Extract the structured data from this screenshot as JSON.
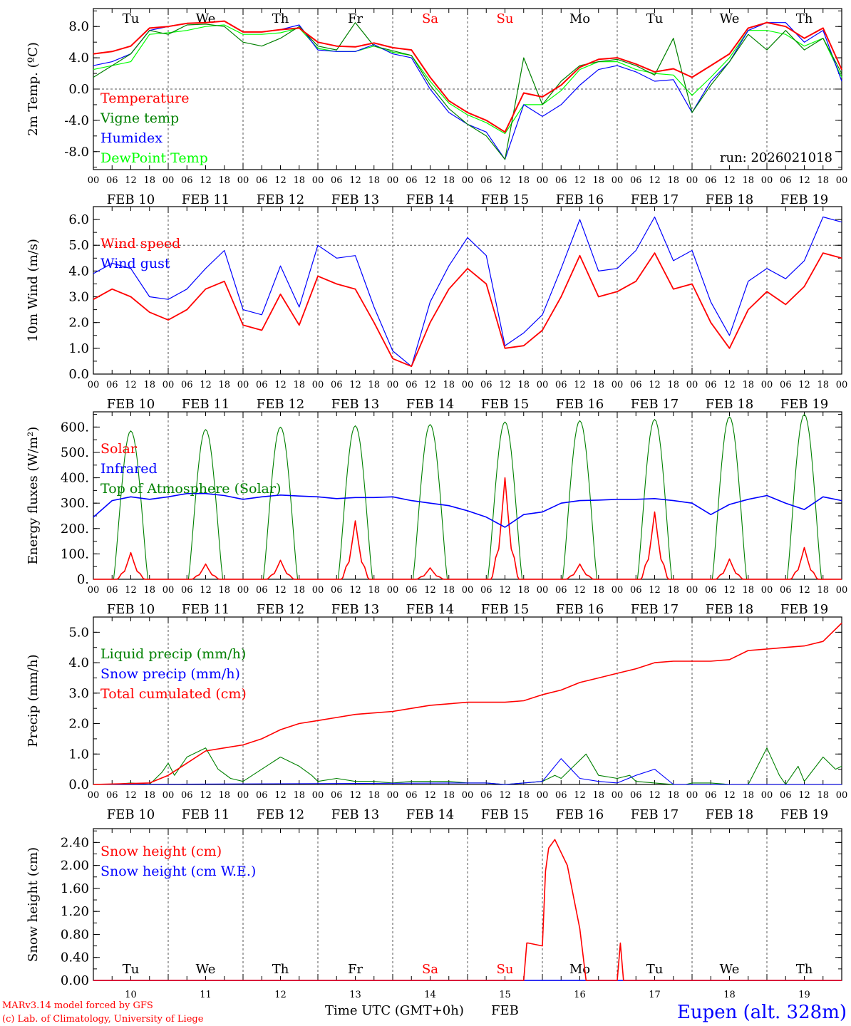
{
  "run_label": "run: 2026021018",
  "credits": [
    "MARv3.14 model forced by GFS",
    "(c) Lab. of Climatology, University of Liege"
  ],
  "x_title": "Time UTC (GMT+0h)",
  "month_label": "FEB",
  "location": "Eupen (alt. 328m)",
  "hour_ticks": [
    "00",
    "06",
    "12",
    "18"
  ],
  "date_labels": [
    "FEB 10",
    "FEB 11",
    "FEB 12",
    "FEB 13",
    "FEB 14",
    "FEB 15",
    "FEB 16",
    "FEB 17",
    "FEB 18",
    "FEB 19"
  ],
  "day_numbers": [
    "10",
    "11",
    "12",
    "13",
    "14",
    "15",
    "16",
    "17",
    "18",
    "19"
  ],
  "weekdays": [
    "Tu",
    "We",
    "Th",
    "Fr",
    "Sa",
    "Su",
    "Mo",
    "Tu",
    "We",
    "Th"
  ],
  "weekend_flags": [
    false,
    false,
    false,
    false,
    true,
    true,
    false,
    false,
    false,
    false
  ],
  "colors": {
    "red": "#ff0000",
    "green": "#008000",
    "blue": "#0000ff",
    "lime": "#00ff00",
    "weekend": "#ff0000",
    "location": "#0000ff"
  },
  "chart_data": [
    {
      "type": "line",
      "id": "temp",
      "ylabel": "2m Temp. (ºC)",
      "ylim": [
        -10.3,
        10.3
      ],
      "yticks": [
        "8.0",
        "4.0",
        "0.0",
        "-4.0",
        "-8.0"
      ],
      "ytick_values": [
        8,
        4,
        0,
        -4,
        -8
      ],
      "ref_line": 0,
      "show_weekdays": "top",
      "x_hours": [
        0,
        6,
        12,
        18,
        24,
        30,
        36,
        42,
        48,
        54,
        60,
        66,
        72,
        78,
        84,
        90,
        96,
        102,
        108,
        114,
        120,
        126,
        132,
        138,
        144,
        150,
        156,
        162,
        168,
        174,
        180,
        186,
        192,
        198,
        204,
        210,
        216,
        222,
        228,
        234,
        240
      ],
      "series": [
        {
          "name": "Temperature",
          "color": "red",
          "values": [
            4.5,
            4.8,
            5.5,
            7.8,
            8.0,
            8.4,
            8.5,
            8.7,
            7.3,
            7.3,
            7.6,
            7.8,
            6.0,
            5.5,
            5.4,
            5.9,
            5.3,
            5.0,
            1.5,
            -1.5,
            -3.0,
            -4.0,
            -5.5,
            -0.5,
            -1.0,
            0.5,
            2.8,
            3.8,
            4.0,
            3.2,
            2.2,
            2.6,
            1.5,
            3.0,
            4.5,
            7.8,
            8.5,
            8.0,
            6.5,
            7.8,
            2.5
          ]
        },
        {
          "name": "Vigne temp",
          "color": "green",
          "values": [
            1.5,
            3.0,
            4.5,
            7.5,
            7.0,
            8.2,
            8.3,
            8.0,
            6.0,
            5.5,
            6.5,
            8.0,
            5.5,
            5.0,
            8.5,
            5.5,
            4.9,
            4.3,
            0.5,
            -2.5,
            -4.5,
            -6.0,
            -9.0,
            4.0,
            -2.0,
            1.0,
            3.0,
            3.5,
            3.8,
            3.0,
            1.8,
            6.5,
            -3.0,
            0.5,
            3.5,
            7.0,
            5.0,
            7.5,
            5.0,
            6.5,
            2.0
          ]
        },
        {
          "name": "Humidex",
          "color": "blue",
          "values": [
            3.0,
            3.5,
            4.5,
            7.5,
            8.0,
            8.4,
            8.5,
            8.7,
            7.3,
            7.3,
            7.6,
            8.2,
            5.0,
            4.8,
            4.8,
            5.7,
            4.5,
            4.0,
            0.0,
            -3.0,
            -4.5,
            -5.5,
            -9.0,
            -2.0,
            -3.5,
            -2.0,
            0.5,
            2.5,
            3.0,
            2.2,
            1.0,
            1.2,
            -3.0,
            1.0,
            3.5,
            7.5,
            8.5,
            8.5,
            6.0,
            7.5,
            1.0
          ]
        },
        {
          "name": "DewPoint Temp",
          "color": "lime",
          "values": [
            2.5,
            3.0,
            3.5,
            7.0,
            7.2,
            7.5,
            8.0,
            8.2,
            7.0,
            7.0,
            7.2,
            7.8,
            5.2,
            4.8,
            4.8,
            5.5,
            4.7,
            4.3,
            1.0,
            -1.8,
            -3.3,
            -4.3,
            -5.7,
            -2.0,
            -2.0,
            -0.2,
            2.5,
            3.5,
            3.5,
            2.5,
            2.0,
            1.8,
            -0.8,
            1.5,
            4.0,
            7.5,
            7.5,
            7.0,
            5.5,
            6.5,
            1.5
          ]
        }
      ]
    },
    {
      "type": "line",
      "id": "wind",
      "ylabel": "10m Wind (m/s)",
      "ylim": [
        0,
        6.5
      ],
      "yticks": [
        "6.0",
        "5.0",
        "4.0",
        "3.0",
        "2.0",
        "1.0",
        "0.0"
      ],
      "ytick_values": [
        6,
        5,
        4,
        3,
        2,
        1,
        0
      ],
      "ref_line": 5.0,
      "x_hours": [
        0,
        6,
        12,
        18,
        24,
        30,
        36,
        42,
        48,
        54,
        60,
        66,
        72,
        78,
        84,
        90,
        96,
        102,
        108,
        114,
        120,
        126,
        132,
        138,
        144,
        150,
        156,
        162,
        168,
        174,
        180,
        186,
        192,
        198,
        204,
        210,
        216,
        222,
        228,
        234,
        240
      ],
      "series": [
        {
          "name": "Wind speed",
          "color": "red",
          "values": [
            2.9,
            3.3,
            3.0,
            2.4,
            2.1,
            2.5,
            3.3,
            3.6,
            1.9,
            1.7,
            3.1,
            1.9,
            3.8,
            3.5,
            3.3,
            2.0,
            0.6,
            0.3,
            2.0,
            3.3,
            4.1,
            3.5,
            1.0,
            1.1,
            1.7,
            3.0,
            4.6,
            3.0,
            3.2,
            3.6,
            4.7,
            3.3,
            3.5,
            2.0,
            1.0,
            2.5,
            3.2,
            2.7,
            3.4,
            4.7,
            4.5
          ]
        },
        {
          "name": "Wind gust",
          "color": "blue",
          "values": [
            3.9,
            4.3,
            4.1,
            3.0,
            2.9,
            3.3,
            4.1,
            4.8,
            2.5,
            2.3,
            4.2,
            2.6,
            5.0,
            4.5,
            4.6,
            2.6,
            0.9,
            0.3,
            2.8,
            4.2,
            5.3,
            4.6,
            1.1,
            1.6,
            2.3,
            4.1,
            6.0,
            4.0,
            4.1,
            4.8,
            6.1,
            4.4,
            4.8,
            2.8,
            1.5,
            3.6,
            4.1,
            3.7,
            4.4,
            6.1,
            5.9
          ]
        }
      ]
    },
    {
      "type": "line",
      "id": "energy",
      "ylabel": "Energy fluxes (W/m²)",
      "ylim": [
        0,
        660
      ],
      "yticks": [
        "600.",
        "500.",
        "400.",
        "300.",
        "200.",
        "100.",
        "0."
      ],
      "ytick_values": [
        600,
        500,
        400,
        300,
        200,
        100,
        0
      ],
      "legend": [
        "Solar",
        "Infrared",
        "Top of Atmosphere (Solar)"
      ],
      "solar_peaks_day": [
        105,
        60,
        75,
        230,
        45,
        400,
        60,
        265,
        80,
        125
      ],
      "toa_peaks_day": [
        585,
        590,
        600,
        605,
        610,
        620,
        625,
        630,
        640,
        650
      ],
      "infrared": {
        "x_hours": [
          0,
          6,
          12,
          18,
          24,
          30,
          36,
          42,
          48,
          54,
          60,
          66,
          72,
          78,
          84,
          90,
          96,
          102,
          108,
          114,
          120,
          126,
          132,
          138,
          144,
          150,
          156,
          162,
          168,
          174,
          180,
          186,
          192,
          198,
          204,
          210,
          216,
          222,
          228,
          234,
          240
        ],
        "values": [
          245,
          310,
          325,
          315,
          325,
          338,
          338,
          330,
          315,
          325,
          332,
          328,
          325,
          318,
          322,
          322,
          325,
          310,
          300,
          290,
          270,
          245,
          205,
          255,
          265,
          300,
          310,
          312,
          315,
          315,
          318,
          310,
          300,
          255,
          295,
          315,
          330,
          300,
          275,
          325,
          310
        ]
      }
    },
    {
      "type": "line",
      "id": "precip",
      "ylabel": "Precip (mm/h)",
      "ylim": [
        0,
        5.5
      ],
      "yticks": [
        "5.0",
        "4.0",
        "3.0",
        "2.0",
        "1.0",
        "0.0"
      ],
      "ytick_values": [
        5,
        4,
        3,
        2,
        1,
        0
      ],
      "series": [
        {
          "name": "Liquid precip (mm/h)",
          "color": "green",
          "values_x_hours": [
            0,
            6,
            12,
            18,
            22,
            24,
            26,
            30,
            36,
            40,
            44,
            48,
            54,
            60,
            66,
            70,
            72,
            78,
            84,
            90,
            96,
            102,
            108,
            114,
            120,
            126,
            132,
            138,
            144,
            148,
            150,
            154,
            158,
            162,
            168,
            172,
            174,
            180,
            186,
            190,
            192,
            198,
            204,
            210,
            216,
            220,
            222,
            226,
            228,
            234,
            238,
            240
          ],
          "values": [
            0,
            0,
            0.05,
            0,
            0.4,
            0.7,
            0.3,
            0.9,
            1.2,
            0.5,
            0.2,
            0.1,
            0.5,
            0.9,
            0.6,
            0.3,
            0.1,
            0.2,
            0.1,
            0.1,
            0.05,
            0.1,
            0.1,
            0.1,
            0.05,
            0.05,
            0,
            0.05,
            0.1,
            0.3,
            0.2,
            0.6,
            1.0,
            0.3,
            0.2,
            0.3,
            0.1,
            0.05,
            0,
            0,
            0.05,
            0.05,
            0,
            0,
            1.2,
            0.3,
            0,
            0.6,
            0.1,
            0.9,
            0.5,
            0.6
          ]
        },
        {
          "name": "Snow precip (mm/h)",
          "color": "blue",
          "values_x_hours": [
            0,
            120,
            126,
            132,
            138,
            144,
            150,
            156,
            162,
            168,
            174,
            180,
            186,
            240
          ],
          "values": [
            0,
            0.05,
            0.05,
            0,
            0.05,
            0.1,
            0.85,
            0.2,
            0.1,
            0.05,
            0.3,
            0.5,
            0,
            0
          ]
        },
        {
          "name": "Total cumulated (cm)",
          "color": "red",
          "values_x_hours": [
            0,
            12,
            18,
            24,
            30,
            36,
            42,
            48,
            54,
            60,
            66,
            72,
            78,
            84,
            90,
            96,
            102,
            108,
            114,
            120,
            126,
            132,
            138,
            144,
            150,
            156,
            162,
            168,
            174,
            180,
            186,
            192,
            198,
            204,
            210,
            216,
            222,
            228,
            234,
            240
          ],
          "values": [
            0,
            0.03,
            0.05,
            0.3,
            0.7,
            1.1,
            1.2,
            1.3,
            1.5,
            1.8,
            2.0,
            2.1,
            2.2,
            2.3,
            2.35,
            2.4,
            2.5,
            2.6,
            2.65,
            2.7,
            2.7,
            2.7,
            2.75,
            2.95,
            3.1,
            3.35,
            3.5,
            3.65,
            3.8,
            4.0,
            4.05,
            4.05,
            4.05,
            4.1,
            4.4,
            4.45,
            4.5,
            4.55,
            4.7,
            5.3
          ]
        }
      ]
    },
    {
      "type": "line",
      "id": "snow",
      "ylabel": "Snow height (cm)",
      "ylim": [
        0,
        2.64
      ],
      "yticks": [
        "2.40",
        "2.00",
        "1.60",
        "1.20",
        "0.80",
        "0.40",
        "0.00"
      ],
      "ytick_values": [
        2.4,
        2.0,
        1.6,
        1.2,
        0.8,
        0.4,
        0.0
      ],
      "show_weekdays": "bottom",
      "series": [
        {
          "name": "Snow height (cm)",
          "color": "red",
          "values_x_hours": [
            0,
            138,
            139,
            139.5,
            144,
            145,
            146,
            148,
            152,
            156,
            158,
            168,
            169,
            170,
            170.5,
            240
          ],
          "values": [
            0,
            0,
            0.65,
            0.65,
            0.6,
            1.9,
            2.3,
            2.45,
            2.0,
            0.9,
            0,
            0,
            0.65,
            0,
            0,
            0
          ]
        },
        {
          "name": "Snow height (cm W.E.)",
          "color": "blue",
          "values_x_hours": [
            0,
            240
          ],
          "values": [
            0,
            0
          ]
        }
      ]
    }
  ]
}
